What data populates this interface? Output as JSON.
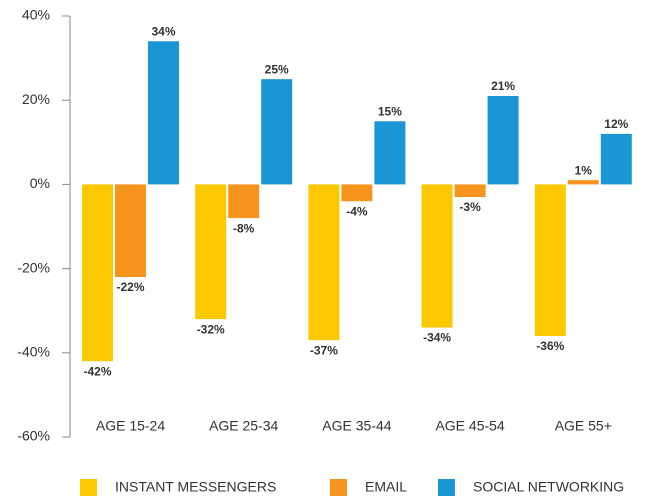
{
  "chart_data": {
    "type": "bar",
    "categories": [
      "AGE 15-24",
      "AGE 25-34",
      "AGE 35-44",
      "AGE 45-54",
      "AGE 55+"
    ],
    "series": [
      {
        "name": "INSTANT MESSENGERS",
        "color": "#fcc800",
        "values": [
          -42,
          -32,
          -37,
          -34,
          -36
        ],
        "value_labels": [
          "-42%",
          "-32%",
          "-37%",
          "-34%",
          "-36%"
        ]
      },
      {
        "name": "EMAIL",
        "color": "#f7941d",
        "values": [
          -22,
          -8,
          -4,
          -3,
          1
        ],
        "value_labels": [
          "-22%",
          "-8%",
          "-4%",
          "-3%",
          "1%"
        ]
      },
      {
        "name": "SOCIAL NETWORKING",
        "color": "#1a96d4",
        "values": [
          34,
          25,
          15,
          21,
          12
        ],
        "value_labels": [
          "34%",
          "25%",
          "15%",
          "21%",
          "12%"
        ]
      }
    ],
    "ylim": [
      -60,
      40
    ],
    "yticks": [
      {
        "value": -60,
        "label": "-60%"
      },
      {
        "value": -40,
        "label": "-40%"
      },
      {
        "value": -20,
        "label": "-20%"
      },
      {
        "value": 0,
        "label": "0%"
      },
      {
        "value": 20,
        "label": "20%"
      },
      {
        "value": 40,
        "label": "40%"
      }
    ],
    "legend": "bottom"
  }
}
